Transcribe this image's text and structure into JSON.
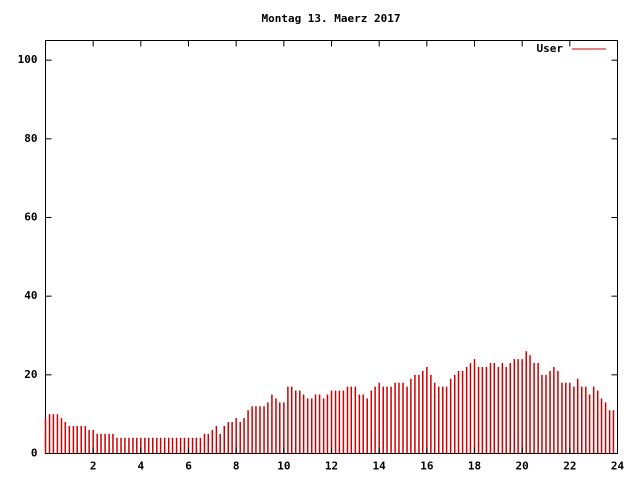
{
  "chart_data": {
    "type": "impulse",
    "title": "Montag 13. Maerz 2017",
    "series": [
      {
        "name": "User",
        "color": "#cc0000",
        "x": [
          0,
          0.17,
          0.33,
          0.5,
          0.67,
          0.83,
          1,
          1.17,
          1.33,
          1.5,
          1.67,
          1.83,
          2,
          2.17,
          2.33,
          2.5,
          2.67,
          2.83,
          3,
          3.17,
          3.33,
          3.5,
          3.67,
          3.83,
          4,
          4.17,
          4.33,
          4.5,
          4.67,
          4.83,
          5,
          5.17,
          5.33,
          5.5,
          5.67,
          5.83,
          6,
          6.17,
          6.33,
          6.5,
          6.67,
          6.83,
          7,
          7.17,
          7.33,
          7.5,
          7.67,
          7.83,
          8,
          8.17,
          8.33,
          8.5,
          8.67,
          8.83,
          9,
          9.17,
          9.33,
          9.5,
          9.67,
          9.83,
          10,
          10.17,
          10.33,
          10.5,
          10.67,
          10.83,
          11,
          11.17,
          11.33,
          11.5,
          11.67,
          11.83,
          12,
          12.17,
          12.33,
          12.5,
          12.67,
          12.83,
          13,
          13.17,
          13.33,
          13.5,
          13.67,
          13.83,
          14,
          14.17,
          14.33,
          14.5,
          14.67,
          14.83,
          15,
          15.17,
          15.33,
          15.5,
          15.67,
          15.83,
          16,
          16.17,
          16.33,
          16.5,
          16.67,
          16.83,
          17,
          17.17,
          17.33,
          17.5,
          17.67,
          17.83,
          18,
          18.17,
          18.33,
          18.5,
          18.67,
          18.83,
          19,
          19.17,
          19.33,
          19.5,
          19.67,
          19.83,
          20,
          20.17,
          20.33,
          20.5,
          20.67,
          20.83,
          21,
          21.17,
          21.33,
          21.5,
          21.67,
          21.83,
          22,
          22.17,
          22.33,
          22.5,
          22.67,
          22.83,
          23,
          23.17,
          23.33,
          23.5,
          23.67,
          23.83
        ],
        "values": [
          9,
          10,
          10,
          10,
          9,
          8,
          7,
          7,
          7,
          7,
          7,
          6,
          6,
          5,
          5,
          5,
          5,
          5,
          4,
          4,
          4,
          4,
          4,
          4,
          4,
          4,
          4,
          4,
          4,
          4,
          4,
          4,
          4,
          4,
          4,
          4,
          4,
          4,
          4,
          4,
          5,
          5,
          6,
          7,
          5,
          7,
          8,
          8,
          9,
          8,
          9,
          11,
          12,
          12,
          12,
          12,
          13,
          15,
          14,
          13,
          13,
          17,
          17,
          16,
          16,
          15,
          14,
          14,
          15,
          15,
          14,
          15,
          16,
          16,
          16,
          16,
          17,
          17,
          17,
          15,
          15,
          14,
          16,
          17,
          18,
          17,
          17,
          17,
          18,
          18,
          18,
          17,
          19,
          20,
          20,
          21,
          22,
          20,
          18,
          17,
          17,
          17,
          19,
          20,
          21,
          21,
          22,
          23,
          24,
          22,
          22,
          22,
          23,
          23,
          22,
          23,
          22,
          23,
          24,
          24,
          24,
          26,
          25,
          23,
          23,
          20,
          20,
          21,
          22,
          21,
          18,
          18,
          18,
          17,
          19,
          17,
          17,
          15,
          17,
          16,
          14,
          13,
          11,
          11
        ]
      }
    ],
    "xlim": [
      0,
      24
    ],
    "xticks": [
      2,
      4,
      6,
      8,
      10,
      12,
      14,
      16,
      18,
      20,
      22,
      24
    ],
    "ylim": [
      0,
      105
    ],
    "yticks": [
      0,
      20,
      40,
      60,
      80,
      100
    ]
  }
}
